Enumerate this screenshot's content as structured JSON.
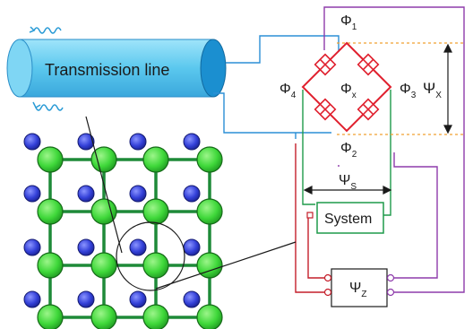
{
  "labels": {
    "transmission_line": "Transmission line",
    "phi1": "Φ",
    "phi1_sub": "1",
    "phi2": "Φ",
    "phi2_sub": "2",
    "phi3": "Φ",
    "phi3_sub": "3",
    "phi4": "Φ",
    "phi4_sub": "4",
    "phix": "Φ",
    "phix_sub": "x",
    "psix": "Ψ",
    "psix_sub": "X",
    "psis": "Ψ",
    "psis_sub": "S",
    "psiz": "Ψ",
    "psiz_sub": "Z",
    "system": "System"
  },
  "colors": {
    "cable": "#5bc8ee",
    "cable_dark": "#1b8fd0",
    "wire_blue": "#2b8fd6",
    "wire_green": "#1e9a4a",
    "wire_red": "#c41e2a",
    "wire_purple": "#8e3bab",
    "bridge_red": "#e0202e",
    "dashed_orange": "#f0a030",
    "atom_green": "#3fd83a",
    "atom_blue": "#3340d8",
    "lattice_green": "#1e8a38"
  },
  "icons": [
    "wave-arrow-icon",
    "josephson-junction-icon",
    "magnifier-circle-icon"
  ]
}
